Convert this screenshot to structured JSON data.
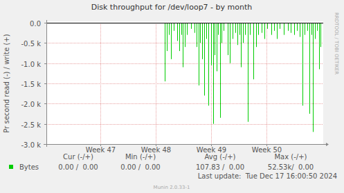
{
  "chart_data": {
    "type": "bar",
    "title": "Disk throughput for /dev/loop7 - by month",
    "y_label": "Pr second read (-) / write (+)",
    "watermark": "RRDTOOL / TOBI OETIKER",
    "xlim": [
      46.025,
      51.025
    ],
    "xticks": [
      {
        "value": 47,
        "label": "Week 47"
      },
      {
        "value": 48,
        "label": "Week 48"
      },
      {
        "value": 49,
        "label": "Week 49"
      },
      {
        "value": 50,
        "label": "Week 50"
      }
    ],
    "ylim": [
      -3000,
      0
    ],
    "yticks": [
      {
        "value": 0,
        "label": "0.0"
      },
      {
        "value": -500,
        "label": "-0.5 k"
      },
      {
        "value": -1000,
        "label": "-1.0 k"
      },
      {
        "value": -1500,
        "label": "-1.5 k"
      },
      {
        "value": -2000,
        "label": "-2.0 k"
      },
      {
        "value": -2500,
        "label": "-2.5 k"
      },
      {
        "value": -3000,
        "label": "-3.0 k"
      }
    ],
    "grid": true,
    "series": [
      {
        "name": "Bytes",
        "color": "#00cc00",
        "x": [
          48.163,
          48.2,
          48.238,
          48.275,
          48.325,
          48.388,
          48.425,
          48.463,
          48.488,
          48.525,
          48.563,
          48.638,
          48.7,
          48.738,
          48.775,
          48.8,
          48.838,
          48.875,
          48.913,
          48.95,
          49.0,
          49.038,
          49.063,
          49.1,
          49.125,
          49.163,
          49.188,
          49.225,
          49.3,
          49.338,
          49.388,
          49.438,
          49.475,
          49.513,
          49.538,
          49.575,
          49.613,
          49.663,
          49.7,
          49.763,
          49.813,
          49.85,
          49.913,
          49.963,
          50.013,
          50.088,
          50.138,
          50.188,
          50.238,
          50.313,
          50.388,
          50.438,
          50.5,
          50.55,
          50.6,
          50.65,
          50.688,
          50.738,
          50.775,
          50.813,
          50.838,
          50.875,
          50.913,
          50.95,
          50.975
        ],
        "values": [
          -1450,
          -700,
          -300,
          -900,
          -200,
          -450,
          -700,
          -300,
          -1100,
          -600,
          -300,
          -150,
          -250,
          -600,
          -1550,
          -500,
          -900,
          -1800,
          -400,
          -2050,
          -1050,
          -2500,
          -800,
          -1200,
          -300,
          -2350,
          -500,
          -200,
          -800,
          -1000,
          -400,
          -250,
          -550,
          -300,
          -1100,
          -500,
          -300,
          -2450,
          -300,
          -1400,
          -600,
          -300,
          -250,
          -400,
          -150,
          -300,
          -200,
          -400,
          -150,
          -300,
          -200,
          -250,
          -300,
          -200,
          -350,
          -2050,
          -300,
          -200,
          -2250,
          -300,
          -2700,
          -400,
          -200,
          -1150,
          -600
        ]
      }
    ],
    "summary": {
      "headers": [
        "Cur (-/+)",
        "Min (-/+)",
        "Avg (-/+)",
        "Max (-/+)"
      ],
      "rows": [
        [
          "0.00 /  0.00",
          "0.00 /  0.00",
          "107.83 /  0.00",
          "52.53k/  0.00"
        ]
      ]
    },
    "last_update": "Last update:  Tue Dec 17 16:00:50 2024",
    "footer": "Munin 2.0.33-1"
  }
}
